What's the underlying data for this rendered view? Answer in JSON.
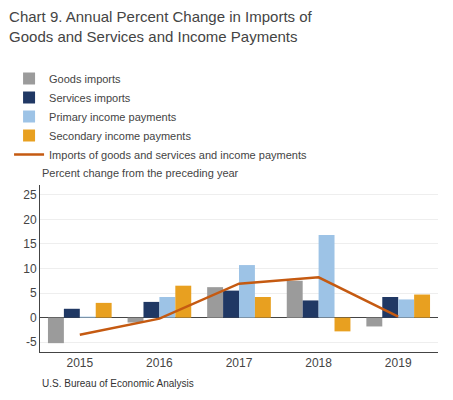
{
  "chart_data": {
    "type": "bar",
    "title": "Chart 9. Annual Percent Change in Imports of\nGoods and Services and Income Payments",
    "subtitle": "Percent change from the preceding year",
    "footer": "U.S. Bureau of Economic Analysis",
    "categories": [
      "2015",
      "2016",
      "2017",
      "2018",
      "2019"
    ],
    "series": [
      {
        "name": "Goods imports",
        "color": "#9b9b9b",
        "values": [
          -5.2,
          -1.0,
          6.2,
          7.5,
          -1.8
        ]
      },
      {
        "name": "Services imports",
        "color": "#203864",
        "values": [
          1.8,
          3.2,
          5.5,
          3.5,
          4.2
        ]
      },
      {
        "name": "Primary income payments",
        "color": "#9dc3e6",
        "values": [
          0.2,
          4.2,
          10.7,
          16.8,
          3.7
        ]
      },
      {
        "name": "Secondary income payments",
        "color": "#e8a020",
        "values": [
          3.0,
          6.5,
          4.2,
          -2.8,
          4.7
        ]
      },
      {
        "name": "Imports of goods and services and income payments",
        "type": "line",
        "color": "#c55a11",
        "values": [
          -3.5,
          -0.2,
          6.9,
          8.2,
          0.2
        ]
      }
    ],
    "ylim": [
      -7,
      27
    ],
    "yticks": [
      -5,
      0,
      5,
      10,
      15,
      20,
      25
    ],
    "grid": true,
    "legend": "top"
  }
}
